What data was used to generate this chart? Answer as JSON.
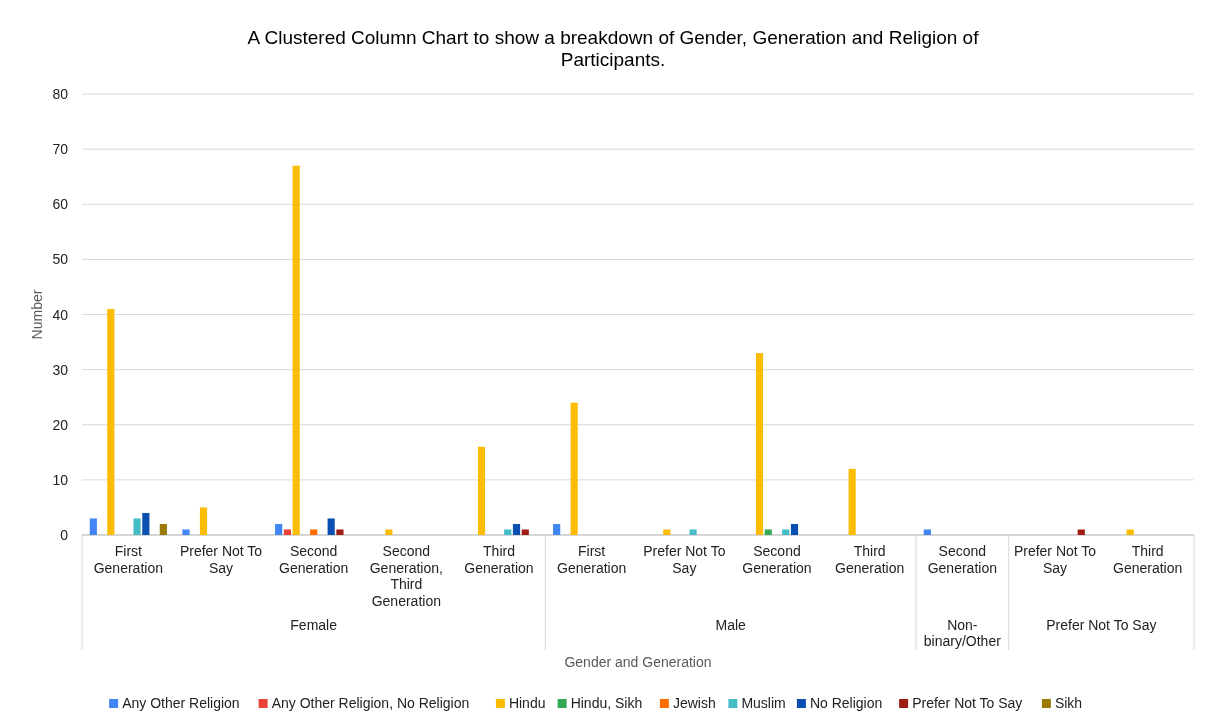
{
  "chart_data": {
    "type": "bar",
    "title": "A Clustered Column Chart to show a breakdown of Gender, Generation and Religion of Participants.",
    "xlabel": "Gender and Generation",
    "ylabel": "Number",
    "categories": [
      "First Generation",
      "Prefer Not To Say",
      "Second Generation",
      "Second Generation, Third Generation",
      "Third Generation",
      "First Generation",
      "Prefer Not To Say",
      "Second Generation",
      "Third Generation",
      "Second Generation",
      "Prefer Not To Say",
      "Third Generation"
    ],
    "annotations": [
      "Female",
      "Male",
      "Non-binary/Other",
      "Prefer Not To Say"
    ],
    "series": [
      {
        "name": "Any Other Religion",
        "color": "#4285f4",
        "values": [
          3,
          1,
          2,
          null,
          null,
          2,
          null,
          null,
          null,
          1,
          null,
          null
        ]
      },
      {
        "name": "Any Other Religion, No Religion",
        "color": "#ea4335",
        "values": [
          null,
          null,
          1,
          null,
          null,
          null,
          null,
          null,
          null,
          null,
          null,
          null
        ]
      },
      {
        "name": "Hindu",
        "color": "#fbbc04",
        "values": [
          41,
          5,
          67,
          1,
          16,
          24,
          1,
          33,
          12,
          null,
          null,
          1
        ]
      },
      {
        "name": "Hindu, Sikh",
        "color": "#34a853",
        "values": [
          null,
          null,
          null,
          null,
          null,
          null,
          null,
          1,
          null,
          null,
          null,
          null
        ]
      },
      {
        "name": "Jewish",
        "color": "#ff6d01",
        "values": [
          null,
          null,
          1,
          null,
          null,
          null,
          null,
          null,
          null,
          null,
          null,
          null
        ]
      },
      {
        "name": "Muslim",
        "color": "#46bdc6",
        "values": [
          3,
          null,
          null,
          null,
          1,
          null,
          1,
          1,
          null,
          null,
          null,
          null
        ]
      },
      {
        "name": "No Religion",
        "color": "#0b4fb3",
        "values": [
          4,
          null,
          3,
          null,
          2,
          null,
          null,
          2,
          null,
          null,
          null,
          null
        ]
      },
      {
        "name": "Prefer Not To Say",
        "color": "#9e1c14",
        "values": [
          null,
          null,
          1,
          null,
          1,
          null,
          null,
          null,
          null,
          null,
          1,
          null
        ]
      },
      {
        "name": "Sikh",
        "color": "#9c7a06",
        "values": [
          2,
          null,
          null,
          null,
          null,
          null,
          null,
          null,
          null,
          null,
          null,
          null
        ]
      }
    ],
    "ylim": [
      0,
      80
    ],
    "yticks": [
      0,
      10,
      20,
      30,
      40,
      50,
      60,
      70,
      80
    ],
    "grid": "y",
    "legend": "bottom"
  }
}
